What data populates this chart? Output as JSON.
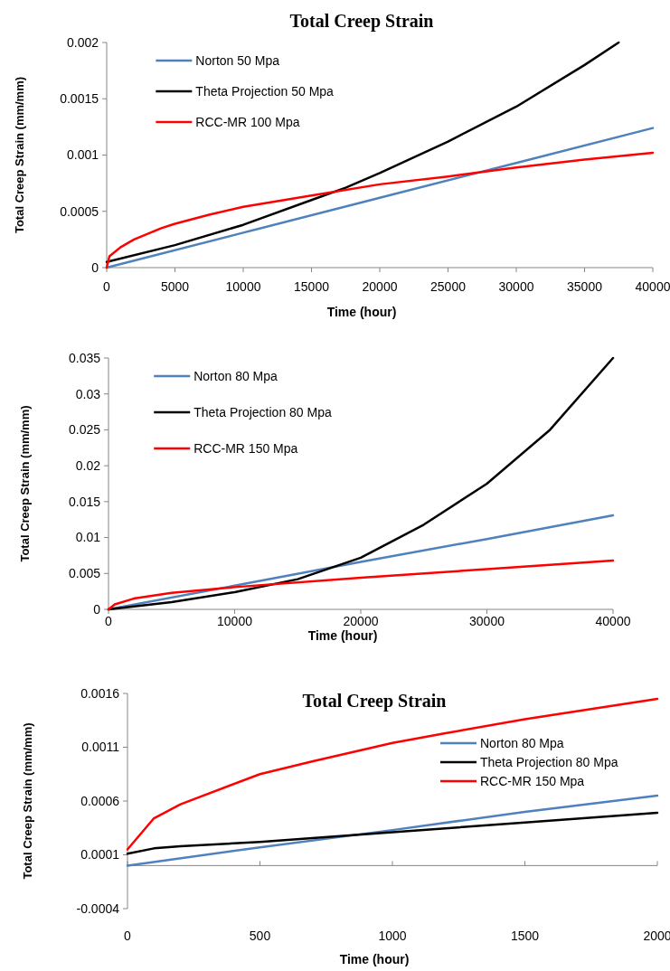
{
  "chart_data": [
    {
      "type": "line",
      "title": "Total Creep Strain",
      "xlabel": "Time (hour)",
      "ylabel": "Total Creep Strain (mm/mm)",
      "xlim": [
        0,
        40000
      ],
      "xticks": [
        0,
        5000,
        10000,
        15000,
        20000,
        25000,
        30000,
        35000,
        40000
      ],
      "ylim": [
        0,
        0.002
      ],
      "yticks": [
        0,
        0.0005,
        0.001,
        0.0015,
        0.002
      ],
      "legend": "top left",
      "grid": false,
      "marker": "none",
      "line_style": "solid",
      "series": [
        {
          "name": "Norton 50 Mpa",
          "color": "#4f81bd",
          "x": [
            0,
            10000,
            20000,
            30000,
            40000
          ],
          "values": [
            0,
            0.00031,
            0.00062,
            0.00093,
            0.00124
          ]
        },
        {
          "name": "Theta Projection 50 Mpa",
          "color": "#000000",
          "x": [
            0,
            5000,
            10000,
            15000,
            17500,
            20000,
            25000,
            30000,
            35000,
            37500
          ],
          "values": [
            5e-05,
            0.0002,
            0.00038,
            0.0006,
            0.00071,
            0.00084,
            0.00112,
            0.00143,
            0.0018,
            0.002
          ]
        },
        {
          "name": "RCC-MR 100 Mpa",
          "color": "#ff0000",
          "x": [
            0,
            200,
            1000,
            2000,
            3000,
            4000,
            5000,
            7500,
            10000,
            15000,
            20000,
            25000,
            30000,
            35000,
            40000
          ],
          "values": [
            0,
            0.0001,
            0.00018,
            0.00025,
            0.0003,
            0.00035,
            0.00039,
            0.00047,
            0.00054,
            0.00064,
            0.00074,
            0.00081,
            0.00089,
            0.00096,
            0.00102
          ]
        }
      ]
    },
    {
      "type": "line",
      "xlabel": "Time (hour)",
      "ylabel": "Total Creep Strain (mm/mm)",
      "xlim": [
        0,
        40000
      ],
      "xticks": [
        0,
        10000,
        20000,
        30000,
        40000
      ],
      "ylim": [
        0,
        0.035
      ],
      "yticks": [
        0,
        0.005,
        0.01,
        0.015,
        0.02,
        0.025,
        0.03,
        0.035
      ],
      "legend": "top left",
      "grid": false,
      "marker": "none",
      "line_style": "solid",
      "series": [
        {
          "name": "Norton 80 Mpa",
          "color": "#4f81bd",
          "x": [
            0,
            10000,
            20000,
            30000,
            40000
          ],
          "values": [
            0,
            0.0033,
            0.0066,
            0.0098,
            0.0131
          ]
        },
        {
          "name": "Theta Projection 80 Mpa",
          "color": "#000000",
          "x": [
            0,
            5000,
            10000,
            15000,
            20000,
            25000,
            30000,
            35000,
            40000
          ],
          "values": [
            0,
            0.001,
            0.0024,
            0.0042,
            0.0072,
            0.0118,
            0.0175,
            0.025,
            0.035
          ]
        },
        {
          "name": "RCC-MR 150 Mpa",
          "color": "#ff0000",
          "x": [
            0,
            500,
            2000,
            5000,
            10000,
            20000,
            30000,
            40000
          ],
          "values": [
            0,
            0.0007,
            0.0015,
            0.0023,
            0.0031,
            0.0044,
            0.0056,
            0.0068
          ]
        }
      ]
    },
    {
      "type": "line",
      "title": "Total Creep Strain",
      "xlabel": "Time (hour)",
      "ylabel": "Total Creep Strain (mm/mm)",
      "xlim": [
        0,
        2000
      ],
      "xticks": [
        0,
        500,
        1000,
        1500,
        2000
      ],
      "ylim": [
        -0.0004,
        0.0016
      ],
      "yticks": [
        -0.0004,
        0.0001,
        0.0006,
        0.0011,
        0.0016
      ],
      "legend": "right",
      "grid": false,
      "marker": "none",
      "line_style": "solid",
      "series": [
        {
          "name": "Norton 80 Mpa",
          "color": "#4f81bd",
          "x": [
            0,
            500,
            1000,
            1500,
            2000
          ],
          "values": [
            0,
            0.00017,
            0.00033,
            0.0005,
            0.00065
          ]
        },
        {
          "name": "Theta Projection 80 Mpa",
          "color": "#000000",
          "x": [
            0,
            100,
            200,
            500,
            1000,
            1500,
            2000
          ],
          "values": [
            0.00011,
            0.00016,
            0.00018,
            0.00022,
            0.00031,
            0.0004,
            0.00049
          ]
        },
        {
          "name": "RCC-MR 150 Mpa",
          "color": "#ff0000",
          "x": [
            0,
            100,
            200,
            500,
            700,
            1000,
            1200,
            1500,
            2000
          ],
          "values": [
            0.00015,
            0.00044,
            0.00057,
            0.00085,
            0.00097,
            0.00114,
            0.00123,
            0.00136,
            0.00155
          ]
        }
      ]
    }
  ]
}
